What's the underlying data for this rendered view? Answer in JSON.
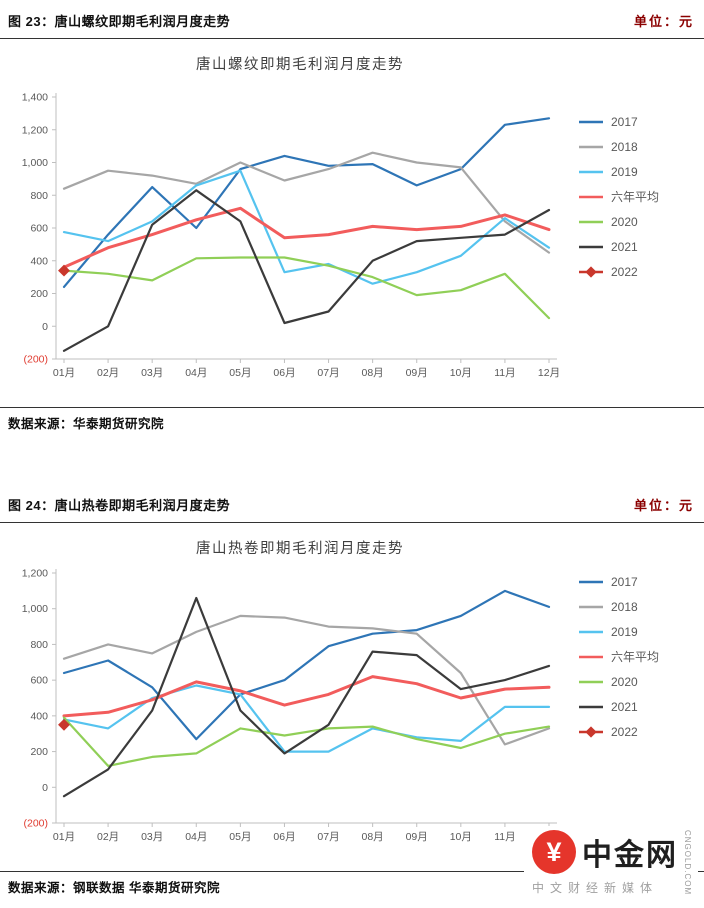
{
  "figures": [
    {
      "caption": "图 23：唐山螺纹即期毛利润月度走势",
      "unit": "单位：元",
      "source": "数据来源：华泰期货研究院"
    },
    {
      "caption": "图 24：唐山热卷即期毛利润月度走势",
      "unit": "单位：元",
      "source": "数据来源：钢联数据  华泰期货研究院"
    }
  ],
  "chart_data": [
    {
      "type": "line",
      "title": "唐山螺纹即期毛利润月度走势",
      "xlabel": "",
      "ylabel": "",
      "grid": false,
      "legend_position": "right",
      "ylim": [
        -200,
        1400
      ],
      "categories": [
        "01月",
        "02月",
        "03月",
        "04月",
        "05月",
        "06月",
        "07月",
        "08月",
        "09月",
        "10月",
        "11月",
        "12月"
      ],
      "y_ticks": [
        {
          "value": -200,
          "label": "(200)"
        },
        {
          "value": 0,
          "label": "0"
        },
        {
          "value": 200,
          "label": "200"
        },
        {
          "value": 400,
          "label": "400"
        },
        {
          "value": 600,
          "label": "600"
        },
        {
          "value": 800,
          "label": "800"
        },
        {
          "value": 1000,
          "label": "1,000"
        },
        {
          "value": 1200,
          "label": "1,200"
        },
        {
          "value": 1400,
          "label": "1,400"
        }
      ],
      "series": [
        {
          "key": "2017",
          "name": "2017",
          "color": "#2e75b6",
          "values": [
            240,
            560,
            850,
            600,
            960,
            1040,
            980,
            990,
            860,
            960,
            1230,
            1270
          ]
        },
        {
          "key": "2018",
          "name": "2018",
          "color": "#a6a6a6",
          "values": [
            840,
            950,
            920,
            870,
            1000,
            890,
            960,
            1060,
            1000,
            970,
            640,
            450
          ]
        },
        {
          "key": "2019",
          "name": "2019",
          "color": "#55c3ef",
          "values": [
            575,
            520,
            640,
            860,
            950,
            330,
            380,
            260,
            330,
            430,
            660,
            480
          ]
        },
        {
          "key": "avg6",
          "name": "六年平均",
          "color": "#f25c5c",
          "width": 3,
          "values": [
            360,
            480,
            560,
            650,
            720,
            540,
            560,
            610,
            590,
            610,
            680,
            590
          ]
        },
        {
          "key": "2020",
          "name": "2020",
          "color": "#90cf57",
          "values": [
            340,
            320,
            280,
            415,
            420,
            420,
            370,
            300,
            190,
            220,
            320,
            50
          ]
        },
        {
          "key": "2021",
          "name": "2021",
          "color": "#3b3b3b",
          "values": [
            -150,
            0,
            620,
            830,
            640,
            20,
            90,
            400,
            520,
            540,
            560,
            710
          ]
        },
        {
          "key": "2022",
          "name": "2022",
          "color": "#c9372c",
          "marker": "diamond",
          "values": [
            340,
            null,
            null,
            null,
            null,
            null,
            null,
            null,
            null,
            null,
            null,
            null
          ]
        }
      ]
    },
    {
      "type": "line",
      "title": "唐山热卷即期毛利润月度走势",
      "xlabel": "",
      "ylabel": "",
      "grid": false,
      "legend_position": "right",
      "ylim": [
        -200,
        1200
      ],
      "categories": [
        "01月",
        "02月",
        "03月",
        "04月",
        "05月",
        "06月",
        "07月",
        "08月",
        "09月",
        "10月",
        "11月",
        "12月"
      ],
      "y_ticks": [
        {
          "value": -200,
          "label": "(200)"
        },
        {
          "value": 0,
          "label": "0"
        },
        {
          "value": 200,
          "label": "200"
        },
        {
          "value": 400,
          "label": "400"
        },
        {
          "value": 600,
          "label": "600"
        },
        {
          "value": 800,
          "label": "800"
        },
        {
          "value": 1000,
          "label": "1,000"
        },
        {
          "value": 1200,
          "label": "1,200"
        }
      ],
      "series": [
        {
          "key": "2017",
          "name": "2017",
          "color": "#2e75b6",
          "values": [
            640,
            710,
            560,
            270,
            520,
            600,
            790,
            860,
            880,
            960,
            1100,
            1010
          ]
        },
        {
          "key": "2018",
          "name": "2018",
          "color": "#a6a6a6",
          "values": [
            720,
            800,
            750,
            870,
            960,
            950,
            900,
            890,
            860,
            640,
            240,
            330
          ]
        },
        {
          "key": "2019",
          "name": "2019",
          "color": "#55c3ef",
          "values": [
            380,
            330,
            500,
            570,
            520,
            200,
            200,
            330,
            280,
            260,
            450,
            450
          ]
        },
        {
          "key": "avg6",
          "name": "六年平均",
          "color": "#f25c5c",
          "width": 3,
          "values": [
            400,
            420,
            490,
            590,
            540,
            460,
            520,
            620,
            580,
            500,
            550,
            560
          ]
        },
        {
          "key": "2020",
          "name": "2020",
          "color": "#90cf57",
          "values": [
            390,
            120,
            170,
            190,
            330,
            290,
            330,
            340,
            270,
            220,
            300,
            340
          ]
        },
        {
          "key": "2021",
          "name": "2021",
          "color": "#3b3b3b",
          "values": [
            -50,
            100,
            430,
            1060,
            430,
            190,
            350,
            760,
            740,
            550,
            600,
            680
          ]
        },
        {
          "key": "2022",
          "name": "2022",
          "color": "#c9372c",
          "marker": "diamond",
          "values": [
            350,
            null,
            null,
            null,
            null,
            null,
            null,
            null,
            null,
            null,
            null,
            null
          ]
        }
      ]
    }
  ],
  "brand": {
    "symbol": "¥",
    "name": "中金网",
    "domain": "CNGOLD.COM",
    "tagline": "中文财经新媒体"
  }
}
